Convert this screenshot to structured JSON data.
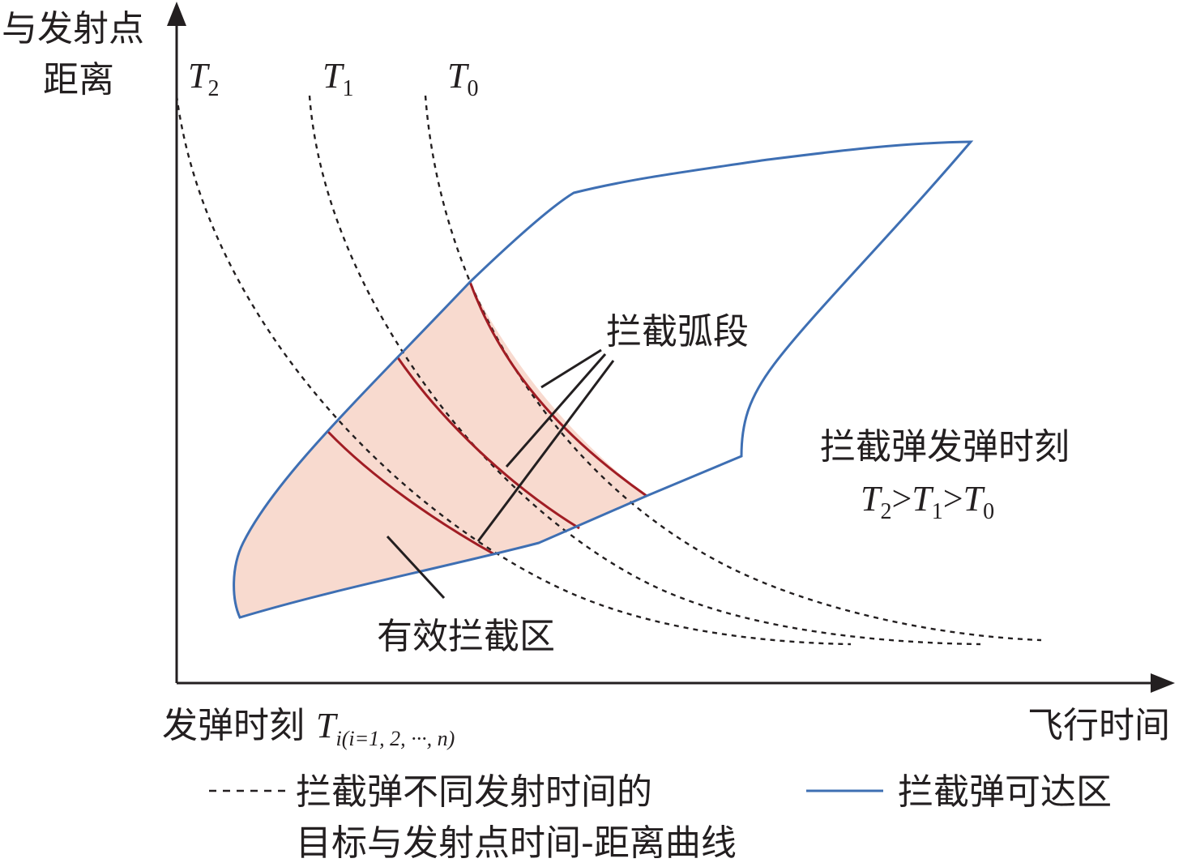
{
  "axes": {
    "y_label_line1": "与发射点",
    "y_label_line2": "距离",
    "x_label": "飞行时间",
    "x_origin_label_prefix": "发弹时刻 ",
    "x_origin_label_T": "T",
    "x_origin_label_sub": "i(i=1, 2, ···, n)"
  },
  "curves": [
    {
      "letter": "T",
      "sub": "2"
    },
    {
      "letter": "T",
      "sub": "1"
    },
    {
      "letter": "T",
      "sub": "0"
    }
  ],
  "annotations": {
    "arc_label": "拦截弧段",
    "zone_label": "有效拦截区",
    "launch_label": "拦截弹发弹时刻",
    "order_T": "T",
    "order_gt": ">",
    "order_subs": [
      "2",
      "1",
      "0"
    ]
  },
  "legend": {
    "dashed_line1": "拦截弹不同发射时间的",
    "dashed_line2": "目标与发射点时间-距离曲线",
    "solid": "拦截弹可达区"
  },
  "colors": {
    "reach_boundary": "#3e6fb3",
    "zone_fill": "#f8dacf",
    "arc": "#a11d24",
    "ink": "#231f20"
  }
}
